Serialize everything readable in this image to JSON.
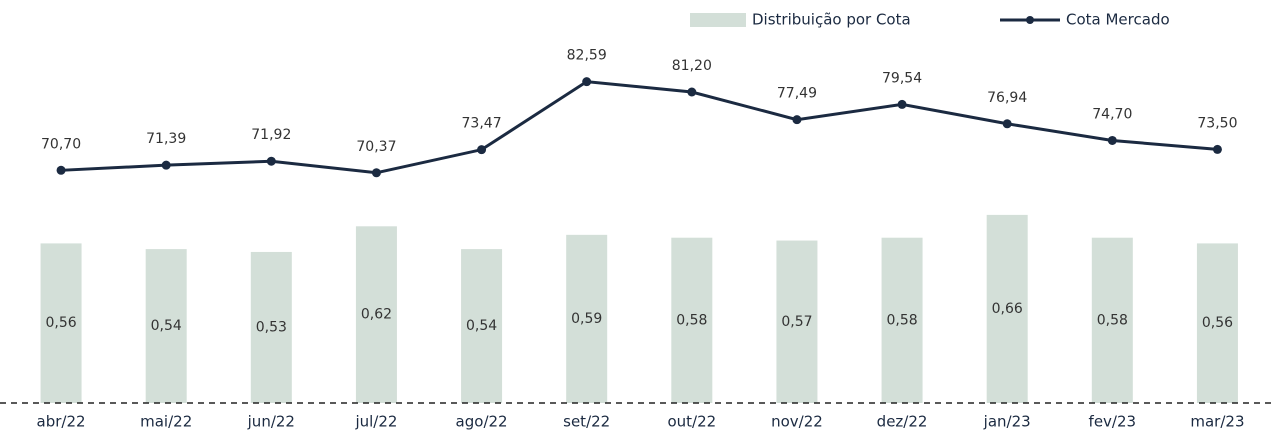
{
  "chart_data": {
    "type": "bar-line",
    "categories": [
      "abr/22",
      "mai/22",
      "jun/22",
      "jul/22",
      "ago/22",
      "set/22",
      "out/22",
      "nov/22",
      "dez/22",
      "jan/23",
      "fev/23",
      "mar/23"
    ],
    "series": [
      {
        "name": "Distribuição por Cota",
        "type": "bar",
        "color": "#d3dfd8",
        "values": [
          0.56,
          0.54,
          0.53,
          0.62,
          0.54,
          0.59,
          0.58,
          0.57,
          0.58,
          0.66,
          0.58,
          0.56
        ],
        "value_labels": [
          "0,56",
          "0,54",
          "0,53",
          "0,62",
          "0,54",
          "0,59",
          "0,58",
          "0,57",
          "0,58",
          "0,66",
          "0,58",
          "0,56"
        ]
      },
      {
        "name": "Cota Mercado",
        "type": "line",
        "axis": "y2",
        "color": "#1b2a41",
        "values": [
          70.7,
          71.39,
          71.92,
          70.37,
          73.47,
          82.59,
          81.2,
          77.49,
          79.54,
          76.94,
          74.7,
          73.5
        ],
        "value_labels": [
          "70,70",
          "71,39",
          "71,92",
          "70,37",
          "73,47",
          "82,59",
          "81,20",
          "77,49",
          "79,54",
          "76,94",
          "74,70",
          "73,50"
        ]
      }
    ],
    "ylim": [
      0,
      1.4
    ],
    "y2lim": [
      39.5,
      93
    ],
    "legend": "top-right"
  }
}
